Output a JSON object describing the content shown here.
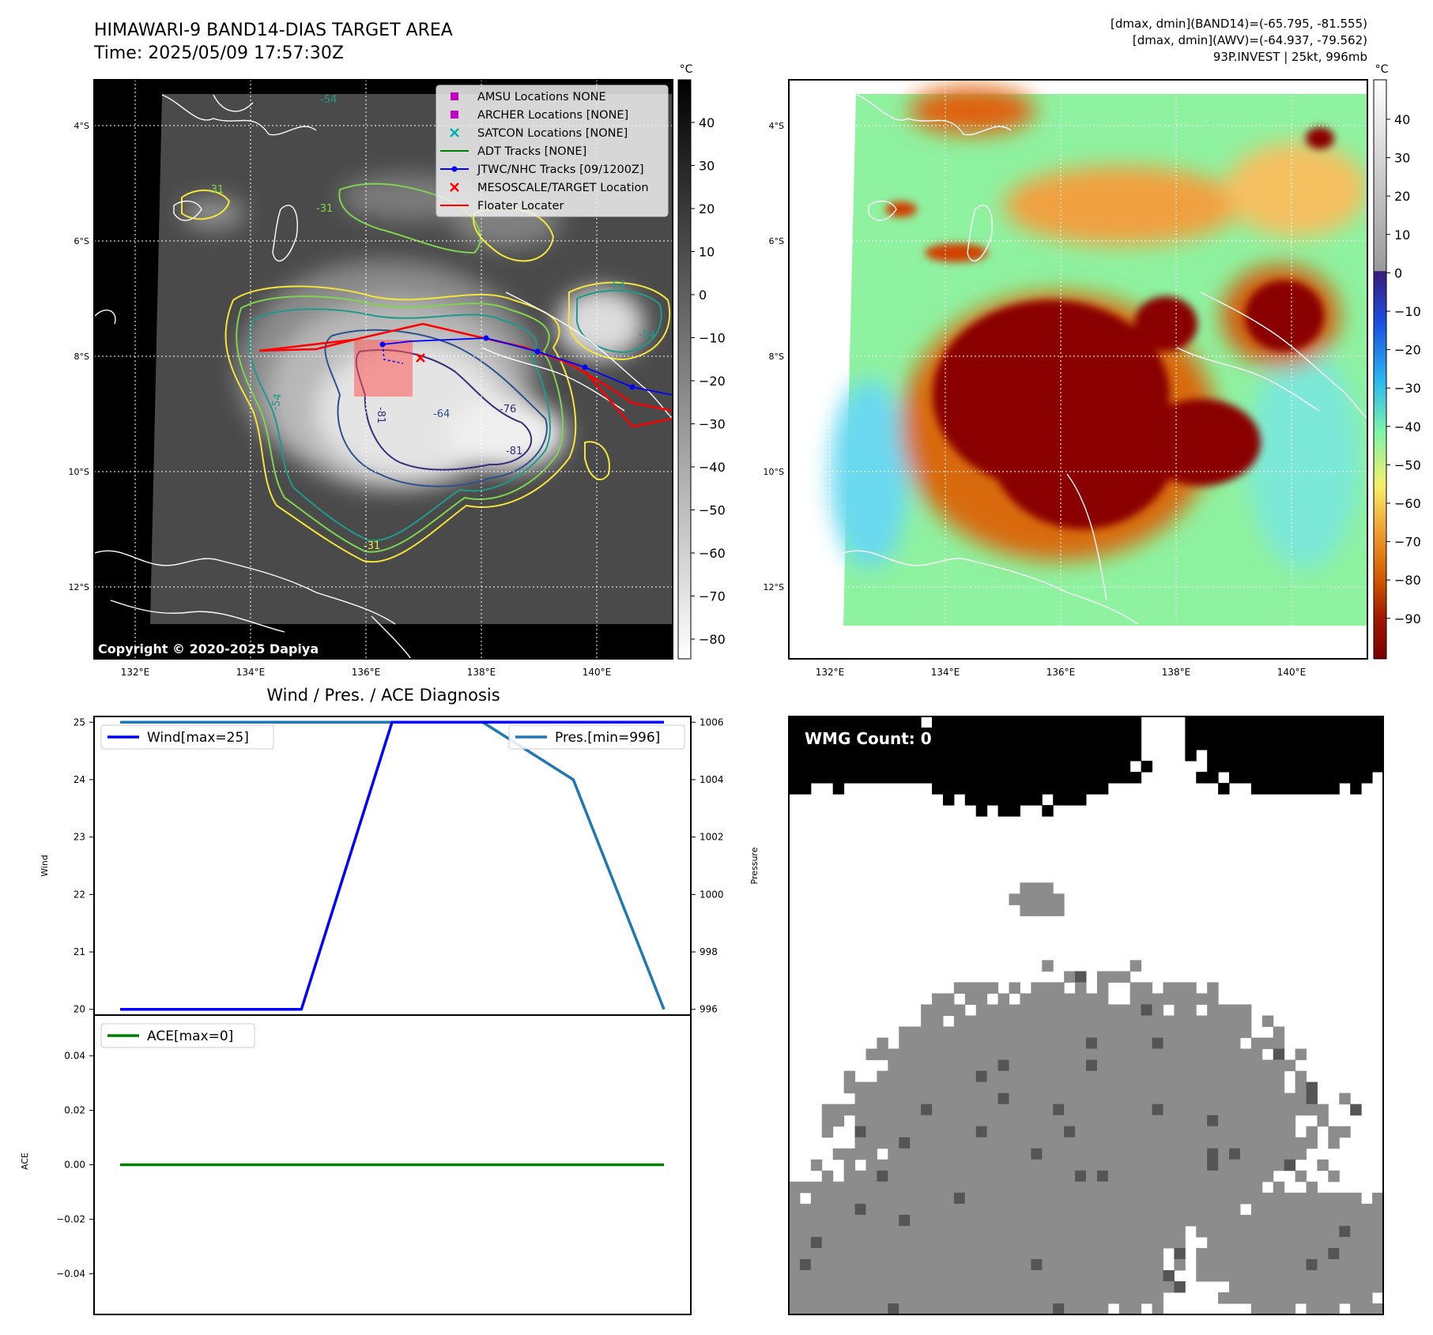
{
  "header": {
    "title_line1": "HIMAWARI-9 BAND14-DIAS TARGET AREA",
    "title_line2": "Time: 2025/05/09 17:57:30Z",
    "info_line1": "[dmax, dmin](BAND14)=(-65.795, -81.555)",
    "info_line2": "[dmax, dmin](AWV)=(-64.937, -79.562)",
    "info_line3": "93P.INVEST | 25kt, 996mb"
  },
  "map": {
    "lat_ticks": [
      "4°S",
      "6°S",
      "8°S",
      "10°S",
      "12°S"
    ],
    "lon_ticks": [
      "132°E",
      "134°E",
      "136°E",
      "138°E",
      "140°E"
    ],
    "copyright": "Copyright © 2020-2025 Dapiya",
    "contour_labels": [
      "-54",
      "-64",
      "-76",
      "-81",
      "-54",
      "-64",
      "-81",
      "-31",
      "-31",
      "-31",
      "-54"
    ],
    "colors": {
      "coast": "#ffffff",
      "contour_yellow": "#f3e53a",
      "contour_green": "#7fd34e",
      "contour_teal": "#1f9a8a",
      "contour_blue": "#2c528b",
      "contour_indigo": "#3b2a7a",
      "track_red": "#ff0000",
      "track_blue": "#0000ff"
    }
  },
  "legend": {
    "items": [
      {
        "label": "AMSU Locations NONE",
        "marker": "square",
        "color": "#c000c0"
      },
      {
        "label": "ARCHER Locations [NONE]",
        "marker": "square",
        "color": "#c000c0"
      },
      {
        "label": "SATCON Locations [NONE]",
        "marker": "x",
        "color": "#00b0b0"
      },
      {
        "label": "ADT Tracks [NONE]",
        "marker": "line",
        "color": "#008000"
      },
      {
        "label": "JTWC/NHC Tracks [09/1200Z]",
        "marker": "line-dot",
        "color": "#0000ff"
      },
      {
        "label": "MESOSCALE/TARGET Location",
        "marker": "x",
        "color": "#ff0000"
      },
      {
        "label": "Floater Locater",
        "marker": "line",
        "color": "#ff0000"
      }
    ]
  },
  "colorbar_left": {
    "unit": "°C",
    "ticks": [
      "40",
      "30",
      "20",
      "10",
      "0",
      "−10",
      "−20",
      "−30",
      "−40",
      "−50",
      "−60",
      "−70",
      "−80"
    ]
  },
  "colorbar_right": {
    "unit": "°C",
    "ticks": [
      "40",
      "30",
      "20",
      "10",
      "0",
      "−10",
      "−20",
      "−30",
      "−40",
      "−50",
      "−60",
      "−70",
      "−80",
      "−90"
    ]
  },
  "chart_data": [
    {
      "type": "line",
      "title": "Wind / Pres. / ACE Diagnosis",
      "ylabel": "Wind",
      "y2label": "Pressure",
      "ylim": [
        19.9,
        25.1
      ],
      "y2lim": [
        995.8,
        1006.2
      ],
      "yticks": [
        "20",
        "21",
        "22",
        "23",
        "24",
        "25"
      ],
      "y2ticks": [
        "996",
        "998",
        "1000",
        "1002",
        "1004",
        "1006"
      ],
      "x": [
        0,
        1,
        2,
        3,
        4,
        5,
        6
      ],
      "series": [
        {
          "name": "Wind[max=25]",
          "axis": "left",
          "color": "#0000ff",
          "values": [
            20,
            20,
            20,
            25,
            25,
            25,
            25
          ]
        },
        {
          "name": "Pres.[min=996]",
          "axis": "right",
          "color": "#1f77b4",
          "values": [
            1006,
            1006,
            1006,
            1006,
            1006,
            1004,
            996
          ]
        }
      ]
    },
    {
      "type": "line",
      "ylabel": "ACE",
      "ylim": [
        -0.055,
        0.055
      ],
      "yticks": [
        "0.04",
        "0.02",
        "0.00",
        "−0.02",
        "−0.04"
      ],
      "x": [
        0,
        1,
        2,
        3,
        4,
        5,
        6
      ],
      "series": [
        {
          "name": "ACE[max=0]",
          "color": "#008000",
          "values": [
            0,
            0,
            0,
            0,
            0,
            0,
            0
          ]
        }
      ]
    }
  ],
  "wmg": {
    "label": "WMG Count: 0"
  }
}
